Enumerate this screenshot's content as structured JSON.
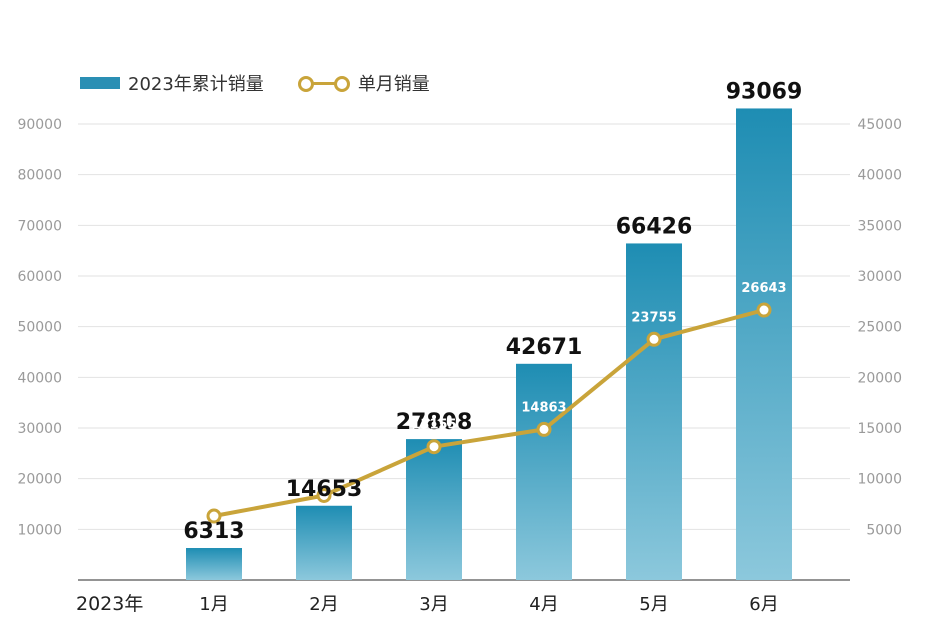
{
  "chart_data": {
    "type": "bar",
    "categories": [
      "1月",
      "2月",
      "3月",
      "4月",
      "5月",
      "6月"
    ],
    "x_axis_prefix_label": "2023年",
    "series": [
      {
        "name": "2023年累计销量",
        "kind": "bar",
        "axis": "left",
        "values": [
          6313,
          14653,
          27808,
          42671,
          66426,
          93069
        ]
      },
      {
        "name": "单月销量",
        "kind": "line",
        "axis": "right",
        "values": [
          6313,
          8340,
          13155,
          14863,
          23755,
          26643
        ]
      }
    ],
    "left_axis": {
      "ticks": [
        10000,
        20000,
        30000,
        40000,
        50000,
        60000,
        70000,
        80000,
        90000
      ],
      "ylim": [
        0,
        100000
      ]
    },
    "right_axis": {
      "ticks": [
        5000,
        10000,
        15000,
        20000,
        25000,
        30000,
        35000,
        40000,
        45000
      ],
      "ylim": [
        0,
        50000
      ]
    },
    "bar_labels": [
      "6313",
      "14653",
      "27808",
      "42671",
      "66426",
      "93069"
    ],
    "line_labels": [
      "",
      "8340",
      "13155",
      "14863",
      "23755",
      "26643"
    ],
    "grid": true,
    "legend_position": "top-left",
    "colors": {
      "bar_top": "#1e8db3",
      "bar_bottom": "#8cc8dc",
      "line": "#c9a43a",
      "grid": "#e2e2e2",
      "axis_text": "#9a9a9a"
    }
  }
}
